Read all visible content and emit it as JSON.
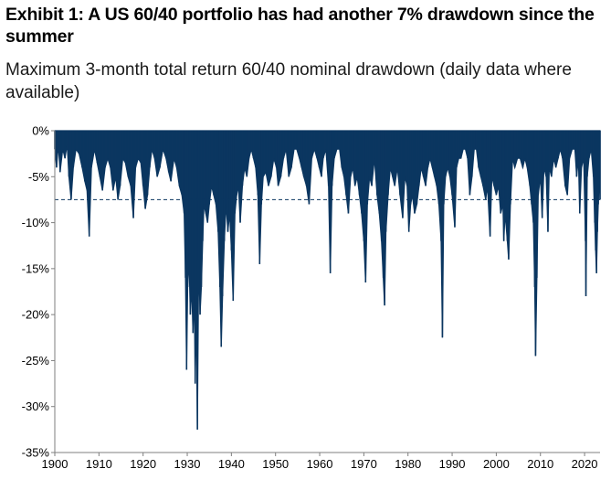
{
  "chart_data": {
    "type": "area",
    "title": "Exhibit 1: A US 60/40 portfolio has had another 7% drawdown since the summer",
    "subtitle": "Maximum 3-month total return 60/40 nominal drawdown (daily data where available)",
    "xlabel": "",
    "ylabel": "",
    "xlim": [
      1900,
      2023.5
    ],
    "ylim": [
      -35,
      0
    ],
    "x_ticks": [
      "1900",
      "1910",
      "1920",
      "1930",
      "1940",
      "1950",
      "1960",
      "1970",
      "1980",
      "1990",
      "2000",
      "2010",
      "2020"
    ],
    "y_ticks": [
      "0%",
      "-5%",
      "-10%",
      "-15%",
      "-20%",
      "-25%",
      "-30%",
      "-35%"
    ],
    "y_tick_values": [
      0,
      -5,
      -10,
      -15,
      -20,
      -25,
      -30,
      -35
    ],
    "reference_line": {
      "value": -7.5,
      "style": "dashed"
    },
    "series": [
      {
        "color": "#0b3660",
        "points": [
          [
            1900.0,
            -2
          ],
          [
            1900.4,
            -4
          ],
          [
            1900.8,
            -1.5
          ],
          [
            1901.2,
            -4.5
          ],
          [
            1901.8,
            -2
          ],
          [
            1902.3,
            -3
          ],
          [
            1902.8,
            -1.5
          ],
          [
            1903.2,
            -5
          ],
          [
            1903.7,
            -7.5
          ],
          [
            1904.2,
            -4
          ],
          [
            1904.8,
            -2
          ],
          [
            1905.5,
            -2.5
          ],
          [
            1906.2,
            -4
          ],
          [
            1906.8,
            -5.5
          ],
          [
            1907.3,
            -6.5
          ],
          [
            1907.8,
            -11.5
          ],
          [
            1908.3,
            -4
          ],
          [
            1909.0,
            -2
          ],
          [
            1909.6,
            -3.5
          ],
          [
            1910.2,
            -5
          ],
          [
            1910.8,
            -6.5
          ],
          [
            1911.4,
            -4
          ],
          [
            1912.0,
            -3
          ],
          [
            1912.6,
            -4
          ],
          [
            1913.2,
            -6.5
          ],
          [
            1913.8,
            -5
          ],
          [
            1914.3,
            -7.5
          ],
          [
            1914.8,
            -6
          ],
          [
            1915.4,
            -3
          ],
          [
            1916.0,
            -3.5
          ],
          [
            1916.6,
            -5
          ],
          [
            1917.2,
            -6
          ],
          [
            1917.8,
            -9.5
          ],
          [
            1918.3,
            -4
          ],
          [
            1918.9,
            -3
          ],
          [
            1919.5,
            -3.5
          ],
          [
            1920.0,
            -6
          ],
          [
            1920.5,
            -8.5
          ],
          [
            1921.0,
            -7
          ],
          [
            1921.5,
            -4
          ],
          [
            1922.0,
            -2
          ],
          [
            1922.6,
            -3
          ],
          [
            1923.2,
            -5
          ],
          [
            1923.8,
            -4
          ],
          [
            1924.5,
            -2
          ],
          [
            1925.2,
            -3
          ],
          [
            1925.8,
            -4.5
          ],
          [
            1926.3,
            -5.5
          ],
          [
            1927.0,
            -3
          ],
          [
            1927.6,
            -4
          ],
          [
            1928.2,
            -6
          ],
          [
            1928.8,
            -7
          ],
          [
            1929.3,
            -9
          ],
          [
            1929.6,
            -16
          ],
          [
            1929.85,
            -26
          ],
          [
            1930.1,
            -17
          ],
          [
            1930.4,
            -14
          ],
          [
            1930.7,
            -20
          ],
          [
            1931.0,
            -17
          ],
          [
            1931.3,
            -22
          ],
          [
            1931.6,
            -18
          ],
          [
            1931.8,
            -27.5
          ],
          [
            1932.0,
            -19
          ],
          [
            1932.3,
            -32.5
          ],
          [
            1932.6,
            -14
          ],
          [
            1932.9,
            -20
          ],
          [
            1933.2,
            -17
          ],
          [
            1933.5,
            -12
          ],
          [
            1933.8,
            -8
          ],
          [
            1934.2,
            -9
          ],
          [
            1934.6,
            -10
          ],
          [
            1935.0,
            -8
          ],
          [
            1935.5,
            -6
          ],
          [
            1936.0,
            -7
          ],
          [
            1936.5,
            -8
          ],
          [
            1937.0,
            -11
          ],
          [
            1937.4,
            -17
          ],
          [
            1937.7,
            -23.5
          ],
          [
            1938.0,
            -18
          ],
          [
            1938.4,
            -12
          ],
          [
            1938.8,
            -8
          ],
          [
            1939.2,
            -11
          ],
          [
            1939.6,
            -9
          ],
          [
            1940.0,
            -13
          ],
          [
            1940.4,
            -18.5
          ],
          [
            1940.8,
            -9
          ],
          [
            1941.2,
            -7
          ],
          [
            1941.6,
            -6
          ],
          [
            1942.0,
            -10
          ],
          [
            1942.5,
            -6
          ],
          [
            1943.0,
            -4
          ],
          [
            1943.5,
            -5
          ],
          [
            1944.0,
            -3
          ],
          [
            1944.5,
            -2
          ],
          [
            1945.0,
            -3
          ],
          [
            1945.5,
            -4
          ],
          [
            1946.0,
            -7
          ],
          [
            1946.4,
            -14.5
          ],
          [
            1946.8,
            -8
          ],
          [
            1947.2,
            -5
          ],
          [
            1947.8,
            -4.5
          ],
          [
            1948.4,
            -6
          ],
          [
            1949.0,
            -5
          ],
          [
            1949.6,
            -3
          ],
          [
            1950.2,
            -4
          ],
          [
            1950.6,
            -6
          ],
          [
            1951.2,
            -5
          ],
          [
            1951.8,
            -3
          ],
          [
            1952.4,
            -2
          ],
          [
            1953.0,
            -5
          ],
          [
            1953.6,
            -4
          ],
          [
            1954.2,
            -2
          ],
          [
            1954.8,
            -2
          ],
          [
            1955.4,
            -3
          ],
          [
            1955.9,
            -4
          ],
          [
            1956.4,
            -5
          ],
          [
            1957.0,
            -6
          ],
          [
            1957.6,
            -8
          ],
          [
            1958.2,
            -3
          ],
          [
            1958.8,
            -2
          ],
          [
            1959.4,
            -3
          ],
          [
            1959.9,
            -4
          ],
          [
            1960.4,
            -5
          ],
          [
            1960.8,
            -3
          ],
          [
            1961.4,
            -2
          ],
          [
            1962.0,
            -6
          ],
          [
            1962.4,
            -15.5
          ],
          [
            1962.8,
            -6
          ],
          [
            1963.3,
            -3
          ],
          [
            1963.9,
            -2
          ],
          [
            1964.5,
            -2
          ],
          [
            1965.0,
            -4
          ],
          [
            1965.5,
            -5
          ],
          [
            1966.0,
            -7
          ],
          [
            1966.5,
            -9
          ],
          [
            1967.0,
            -5
          ],
          [
            1967.5,
            -4
          ],
          [
            1968.0,
            -6
          ],
          [
            1968.5,
            -5
          ],
          [
            1969.0,
            -7
          ],
          [
            1969.5,
            -9
          ],
          [
            1970.0,
            -12
          ],
          [
            1970.4,
            -16.5
          ],
          [
            1970.8,
            -8
          ],
          [
            1971.3,
            -5
          ],
          [
            1971.8,
            -6
          ],
          [
            1972.4,
            -3
          ],
          [
            1973.0,
            -7
          ],
          [
            1973.5,
            -9
          ],
          [
            1974.0,
            -12
          ],
          [
            1974.4,
            -16
          ],
          [
            1974.7,
            -19
          ],
          [
            1975.0,
            -11
          ],
          [
            1975.5,
            -7
          ],
          [
            1976.0,
            -4
          ],
          [
            1976.5,
            -5
          ],
          [
            1977.0,
            -6
          ],
          [
            1977.6,
            -4
          ],
          [
            1978.2,
            -7
          ],
          [
            1978.8,
            -9.5
          ],
          [
            1979.3,
            -5
          ],
          [
            1979.8,
            -6
          ],
          [
            1980.2,
            -11
          ],
          [
            1980.6,
            -8
          ],
          [
            1981.0,
            -7
          ],
          [
            1981.5,
            -9
          ],
          [
            1982.0,
            -8
          ],
          [
            1982.5,
            -6
          ],
          [
            1983.0,
            -4
          ],
          [
            1983.5,
            -5
          ],
          [
            1984.0,
            -6
          ],
          [
            1984.5,
            -4
          ],
          [
            1985.0,
            -3
          ],
          [
            1985.5,
            -4
          ],
          [
            1986.0,
            -5
          ],
          [
            1986.5,
            -6
          ],
          [
            1987.0,
            -8
          ],
          [
            1987.5,
            -12
          ],
          [
            1987.8,
            -22.5
          ],
          [
            1988.1,
            -8
          ],
          [
            1988.5,
            -5
          ],
          [
            1989.0,
            -4
          ],
          [
            1989.5,
            -5
          ],
          [
            1990.0,
            -7
          ],
          [
            1990.6,
            -10.5
          ],
          [
            1991.0,
            -4
          ],
          [
            1991.5,
            -3
          ],
          [
            1992.0,
            -3
          ],
          [
            1992.5,
            -2
          ],
          [
            1993.0,
            -2
          ],
          [
            1993.5,
            -3
          ],
          [
            1994.0,
            -7
          ],
          [
            1994.5,
            -5
          ],
          [
            1995.0,
            -2
          ],
          [
            1995.5,
            -2
          ],
          [
            1996.0,
            -4
          ],
          [
            1996.5,
            -5
          ],
          [
            1997.0,
            -6
          ],
          [
            1997.6,
            -7.5
          ],
          [
            1998.0,
            -6
          ],
          [
            1998.6,
            -11.5
          ],
          [
            1999.0,
            -5
          ],
          [
            1999.5,
            -6
          ],
          [
            2000.0,
            -7
          ],
          [
            2000.5,
            -6
          ],
          [
            2001.0,
            -9
          ],
          [
            2001.5,
            -8
          ],
          [
            2001.7,
            -12
          ],
          [
            2002.0,
            -9
          ],
          [
            2002.5,
            -12
          ],
          [
            2002.8,
            -14
          ],
          [
            2003.2,
            -8
          ],
          [
            2003.7,
            -3
          ],
          [
            2004.2,
            -4
          ],
          [
            2004.8,
            -3
          ],
          [
            2005.4,
            -3
          ],
          [
            2006.0,
            -4
          ],
          [
            2006.5,
            -3
          ],
          [
            2007.0,
            -4
          ],
          [
            2007.6,
            -6
          ],
          [
            2008.0,
            -8
          ],
          [
            2008.4,
            -10
          ],
          [
            2008.7,
            -17
          ],
          [
            2008.9,
            -24.5
          ],
          [
            2009.2,
            -16
          ],
          [
            2009.5,
            -7
          ],
          [
            2010.0,
            -5
          ],
          [
            2010.4,
            -9.5
          ],
          [
            2010.8,
            -4
          ],
          [
            2011.3,
            -5
          ],
          [
            2011.7,
            -11
          ],
          [
            2012.0,
            -4
          ],
          [
            2012.5,
            -5
          ],
          [
            2013.0,
            -3
          ],
          [
            2013.5,
            -4
          ],
          [
            2014.0,
            -3
          ],
          [
            2014.5,
            -2
          ],
          [
            2015.0,
            -3
          ],
          [
            2015.6,
            -6
          ],
          [
            2016.1,
            -7
          ],
          [
            2016.6,
            -3
          ],
          [
            2017.2,
            -2
          ],
          [
            2017.8,
            -2
          ],
          [
            2018.2,
            -5
          ],
          [
            2018.6,
            -3
          ],
          [
            2018.9,
            -9
          ],
          [
            2019.3,
            -4
          ],
          [
            2019.8,
            -3
          ],
          [
            2020.2,
            -12
          ],
          [
            2020.3,
            -18
          ],
          [
            2020.6,
            -5
          ],
          [
            2021.0,
            -3
          ],
          [
            2021.5,
            -2
          ],
          [
            2022.0,
            -5
          ],
          [
            2022.3,
            -10
          ],
          [
            2022.5,
            -13
          ],
          [
            2022.7,
            -15.5
          ],
          [
            2022.9,
            -11
          ],
          [
            2023.1,
            -8
          ],
          [
            2023.3,
            -5
          ],
          [
            2023.5,
            -7.5
          ]
        ]
      }
    ]
  }
}
